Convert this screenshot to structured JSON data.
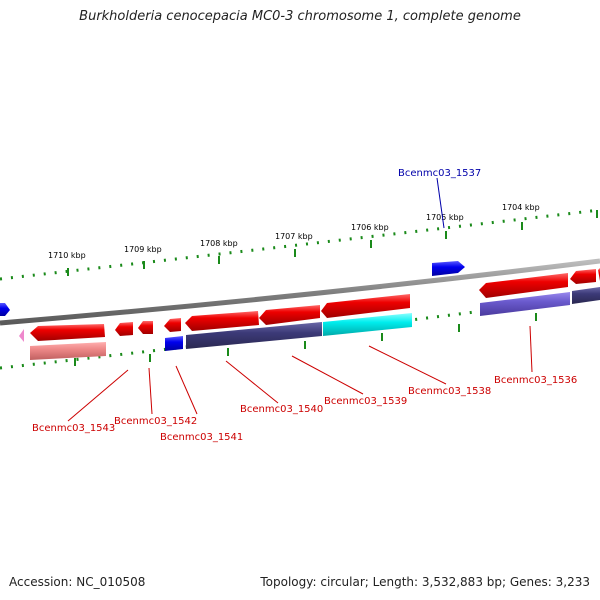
{
  "title": "Burkholderia cenocepacia MC0-3 chromosome 1, complete genome",
  "footer": {
    "accession_label": "Accession: NC_010508",
    "summary": "Topology: circular; Length: 3,532,883 bp; Genes: 3,233"
  },
  "scale_labels": [
    "1710 kbp",
    "1709 kbp",
    "1708 kbp",
    "1707 kbp",
    "1706 kbp",
    "1705 kbp",
    "1704 kbp"
  ],
  "gene_labels": {
    "g1537": "Bcenmc03_1537",
    "g1543": "Bcenmc03_1543",
    "g1542": "Bcenmc03_1542",
    "g1541": "Bcenmc03_1541",
    "g1540": "Bcenmc03_1540",
    "g1539": "Bcenmc03_1539",
    "g1538": "Bcenmc03_1538",
    "g1536": "Bcenmc03_1536"
  },
  "colors": {
    "forward_label": "#0000aa",
    "reverse_label": "#cc0000",
    "gene_red": "#ee0000",
    "gene_blue": "#0000ee",
    "cds_navy": "#3c3a78",
    "cds_cyan": "#00eeee",
    "cds_pink": "#ee8888",
    "cds_violet": "#6a5acd",
    "backbone": "#808080",
    "ticks": "#1a8a1a"
  }
}
